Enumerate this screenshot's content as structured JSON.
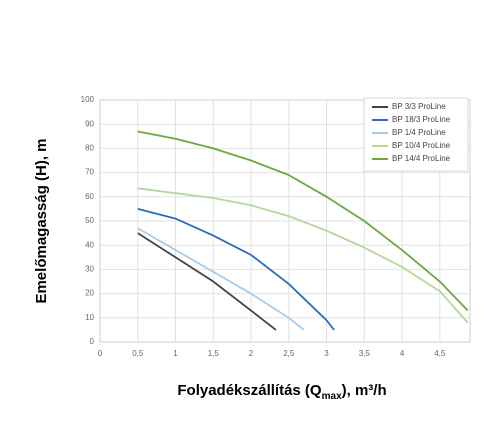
{
  "chart_data": {
    "type": "line",
    "ylabel": "Emelőmagasság (H), m",
    "xlabel": [
      "Folyadékszállítás (Q",
      "max",
      "), m³/h"
    ],
    "xlim": [
      0,
      4.9
    ],
    "ylim": [
      0,
      100
    ],
    "xticks": [
      0,
      {
        "value": 0.5,
        "label": "0,5"
      },
      1,
      {
        "value": 1.5,
        "label": "1,5"
      },
      2,
      {
        "value": 2.5,
        "label": "2,5"
      },
      3,
      {
        "value": 3.5,
        "label": "3,5"
      },
      4,
      {
        "value": 4.5,
        "label": "4,5"
      }
    ],
    "yticks": [
      0,
      10,
      20,
      30,
      40,
      50,
      60,
      70,
      80,
      90,
      100
    ],
    "grid": true,
    "legend": "upper right",
    "series": [
      {
        "name": "BP 3/3 ProLine",
        "color": "#444444",
        "x": [
          0.5,
          1,
          1.5,
          2,
          2.33
        ],
        "values": [
          45,
          35,
          25,
          13,
          5
        ]
      },
      {
        "name": "BP 18/3 ProLine",
        "color": "#2a6db5",
        "x": [
          0.5,
          1,
          1.5,
          2,
          2.5,
          3,
          3.1
        ],
        "values": [
          55,
          51,
          44,
          36,
          24,
          9,
          5
        ]
      },
      {
        "name": "BP 1/4 ProLine",
        "color": "#a8cbe8",
        "x": [
          0.5,
          1,
          1.5,
          2,
          2.5,
          2.7
        ],
        "values": [
          47,
          38,
          29,
          20,
          10,
          5
        ]
      },
      {
        "name": "BP 10/4 ProLine",
        "color": "#b5d89a",
        "x": [
          0.5,
          1,
          1.5,
          2,
          2.5,
          3,
          3.5,
          4,
          4.5,
          4.87
        ],
        "values": [
          63.5,
          61.5,
          59.5,
          56.5,
          52,
          46,
          39,
          31,
          21,
          8
        ]
      },
      {
        "name": "BP 14/4 ProLine",
        "color": "#6aaa3a",
        "x": [
          0.5,
          1,
          1.5,
          2,
          2.5,
          3,
          3.5,
          4,
          4.5,
          4.87
        ],
        "values": [
          87,
          84,
          80,
          75,
          69,
          60,
          50,
          38,
          25,
          13
        ]
      }
    ]
  }
}
